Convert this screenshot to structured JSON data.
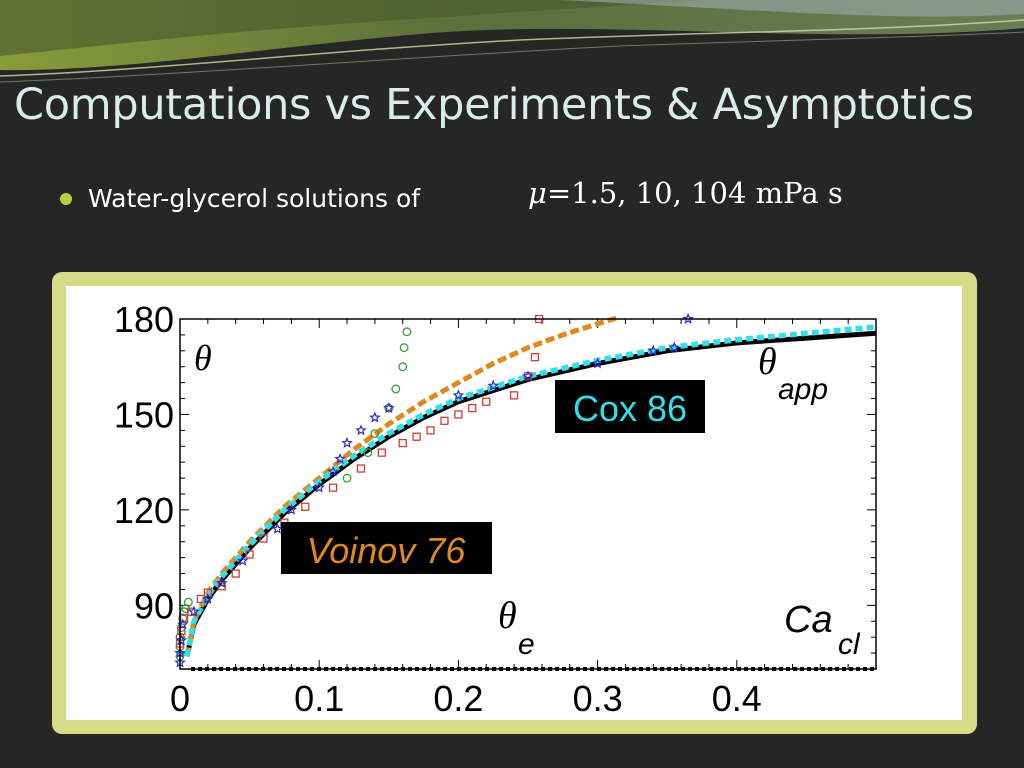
{
  "slide": {
    "title": "Computations vs Experiments & Asymptotics",
    "bullet": {
      "text": "Water-glycerol solutions of",
      "formula_symbol": "μ",
      "formula_values": "=1.5, 10, 104 mPa s"
    }
  },
  "colors": {
    "background": "#262626",
    "title": "#d9ece9",
    "bullet_dot": "#b8cf3f",
    "frame": "#d3dc86",
    "voinov": "#e0891c",
    "cox": "#30e0e8",
    "computation": "#000000",
    "exp_green": "#3a9a3a",
    "exp_red": "#d43b3b",
    "exp_blue": "#2c2cc4"
  },
  "chart_data": {
    "type": "scatter",
    "xlim": [
      0,
      0.5
    ],
    "ylim": [
      70,
      180
    ],
    "x_ticks": [
      "0",
      "0.1",
      "0.2",
      "0.3",
      "0.4"
    ],
    "y_ticks": [
      "90",
      "120",
      "150",
      "180"
    ],
    "x_tick_values": [
      0,
      0.1,
      0.2,
      0.3,
      0.4
    ],
    "y_tick_values": [
      90,
      120,
      150,
      180
    ],
    "annotations": {
      "theta": "θ",
      "theta_app": "θ",
      "theta_app_sub": "app",
      "theta_e": "θ",
      "theta_e_sub": "e",
      "ca": "Ca",
      "ca_sub": "cl"
    },
    "callouts": [
      {
        "label": "Cox 86",
        "series": "cox"
      },
      {
        "label": "Voinov 76",
        "series": "voinov"
      }
    ],
    "series": [
      {
        "key": "computation",
        "style": "solid",
        "points": [
          [
            0.005,
            74
          ],
          [
            0.01,
            84
          ],
          [
            0.02,
            92
          ],
          [
            0.03,
            98
          ],
          [
            0.05,
            108
          ],
          [
            0.075,
            119
          ],
          [
            0.1,
            128
          ],
          [
            0.125,
            136
          ],
          [
            0.15,
            143
          ],
          [
            0.175,
            149
          ],
          [
            0.2,
            154
          ],
          [
            0.25,
            161
          ],
          [
            0.3,
            166
          ],
          [
            0.35,
            170
          ],
          [
            0.4,
            172.5
          ],
          [
            0.45,
            174
          ],
          [
            0.5,
            175.5
          ]
        ]
      },
      {
        "key": "cox",
        "name": "Cox 86",
        "style": "dashed",
        "points": [
          [
            0.005,
            74
          ],
          [
            0.01,
            85
          ],
          [
            0.02,
            93
          ],
          [
            0.03,
            99
          ],
          [
            0.05,
            109
          ],
          [
            0.075,
            120
          ],
          [
            0.1,
            129
          ],
          [
            0.125,
            137
          ],
          [
            0.15,
            144
          ],
          [
            0.175,
            150
          ],
          [
            0.2,
            155
          ],
          [
            0.25,
            162
          ],
          [
            0.3,
            167
          ],
          [
            0.35,
            171
          ],
          [
            0.4,
            173.5
          ],
          [
            0.45,
            175.5
          ],
          [
            0.5,
            177.5
          ]
        ]
      },
      {
        "key": "voinov",
        "name": "Voinov 76",
        "style": "dashed",
        "points": [
          [
            0.005,
            74
          ],
          [
            0.01,
            85
          ],
          [
            0.02,
            94
          ],
          [
            0.03,
            100
          ],
          [
            0.05,
            110
          ],
          [
            0.075,
            121
          ],
          [
            0.1,
            130
          ],
          [
            0.125,
            139
          ],
          [
            0.15,
            147
          ],
          [
            0.175,
            154
          ],
          [
            0.2,
            160
          ],
          [
            0.225,
            166
          ],
          [
            0.25,
            171
          ],
          [
            0.275,
            175
          ],
          [
            0.3,
            178.5
          ],
          [
            0.315,
            180.5
          ]
        ]
      },
      {
        "key": "theta_e",
        "style": "dotted",
        "points": [
          [
            0.008,
            70
          ],
          [
            0.5,
            70
          ]
        ]
      }
    ],
    "scatter": [
      {
        "key": "exp_green",
        "marker": "circle",
        "points": [
          [
            0.0,
            74
          ],
          [
            0.0,
            77
          ],
          [
            0.0,
            80
          ],
          [
            0.001,
            83
          ],
          [
            0.002,
            86
          ],
          [
            0.003,
            88
          ],
          [
            0.004,
            89
          ],
          [
            0.006,
            91
          ],
          [
            0.12,
            130
          ],
          [
            0.135,
            138
          ],
          [
            0.14,
            144
          ],
          [
            0.15,
            152
          ],
          [
            0.155,
            158
          ],
          [
            0.16,
            165
          ],
          [
            0.161,
            171
          ],
          [
            0.163,
            176
          ]
        ]
      },
      {
        "key": "exp_red",
        "marker": "square",
        "points": [
          [
            0.0,
            78
          ],
          [
            0.001,
            82
          ],
          [
            0.003,
            86
          ],
          [
            0.008,
            88
          ],
          [
            0.015,
            92
          ],
          [
            0.02,
            94
          ],
          [
            0.03,
            96
          ],
          [
            0.04,
            100
          ],
          [
            0.05,
            106
          ],
          [
            0.06,
            111
          ],
          [
            0.075,
            116
          ],
          [
            0.09,
            121
          ],
          [
            0.11,
            127
          ],
          [
            0.13,
            133
          ],
          [
            0.145,
            138
          ],
          [
            0.16,
            141
          ],
          [
            0.17,
            143
          ],
          [
            0.18,
            145
          ],
          [
            0.19,
            148
          ],
          [
            0.2,
            150
          ],
          [
            0.21,
            152
          ],
          [
            0.22,
            154
          ],
          [
            0.24,
            156
          ],
          [
            0.25,
            162
          ],
          [
            0.255,
            168
          ],
          [
            0.258,
            180
          ]
        ]
      },
      {
        "key": "exp_blue",
        "marker": "star",
        "points": [
          [
            0.0,
            72
          ],
          [
            0.0,
            75
          ],
          [
            0.001,
            79
          ],
          [
            0.002,
            84
          ],
          [
            0.01,
            88
          ],
          [
            0.02,
            92
          ],
          [
            0.03,
            97
          ],
          [
            0.045,
            104
          ],
          [
            0.07,
            114
          ],
          [
            0.08,
            120
          ],
          [
            0.1,
            127
          ],
          [
            0.11,
            132
          ],
          [
            0.115,
            136
          ],
          [
            0.12,
            141
          ],
          [
            0.13,
            145
          ],
          [
            0.14,
            149
          ],
          [
            0.15,
            152
          ],
          [
            0.2,
            156
          ],
          [
            0.225,
            159
          ],
          [
            0.25,
            162
          ],
          [
            0.3,
            166
          ],
          [
            0.34,
            170
          ],
          [
            0.355,
            171
          ],
          [
            0.365,
            180
          ]
        ]
      }
    ]
  }
}
